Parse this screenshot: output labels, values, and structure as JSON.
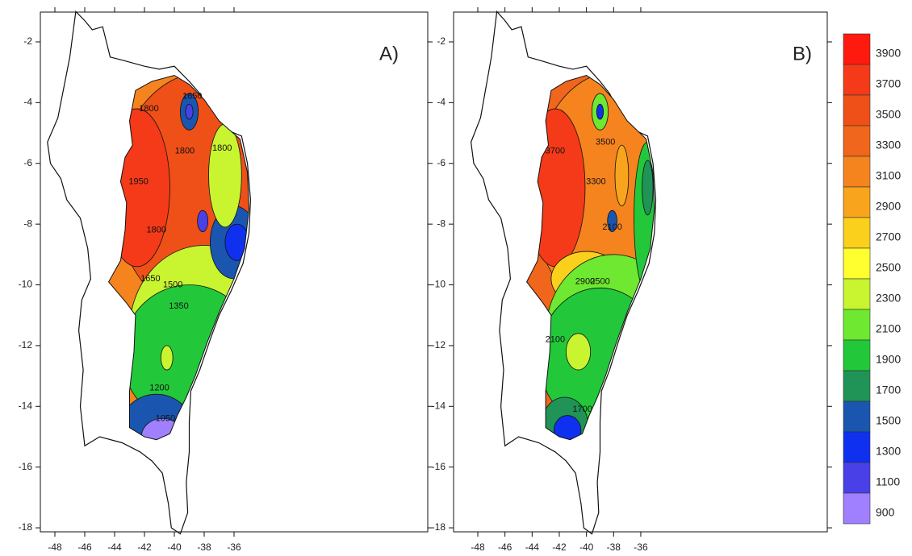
{
  "panels": [
    {
      "label": "A)",
      "x_ticks": [
        -48,
        -46,
        -44,
        -42,
        -40,
        -38,
        -36
      ],
      "y_ticks": [
        -2,
        -4,
        -6,
        -8,
        -10,
        -12,
        -14,
        -16,
        -18
      ],
      "contour_labels": [
        1650,
        1800,
        1800,
        1800,
        1950,
        1800,
        1650,
        1500,
        1350,
        1200,
        1050
      ]
    },
    {
      "label": "B)",
      "x_ticks": [
        -48,
        -46,
        -44,
        -42,
        -40,
        -38,
        -36
      ],
      "y_ticks": [
        -2,
        -4,
        -6,
        -8,
        -10,
        -12,
        -14,
        -16,
        -18
      ],
      "contour_labels": [
        3700,
        3500,
        3300,
        2900,
        2500,
        2100,
        2100,
        1700
      ]
    }
  ],
  "colorbar": {
    "levels": [
      3900,
      3700,
      3500,
      3300,
      3100,
      2900,
      2700,
      2500,
      2300,
      2100,
      1900,
      1700,
      1500,
      1300,
      1100,
      900
    ],
    "colors": [
      "#ff1a10",
      "#f43a18",
      "#ee5018",
      "#f0661c",
      "#f5841e",
      "#f8a41c",
      "#fbd01c",
      "#ffff30",
      "#c8f530",
      "#6ee830",
      "#22c83a",
      "#1f9456",
      "#1a56b0",
      "#1030f0",
      "#4a40e8",
      "#a080ff"
    ]
  }
}
